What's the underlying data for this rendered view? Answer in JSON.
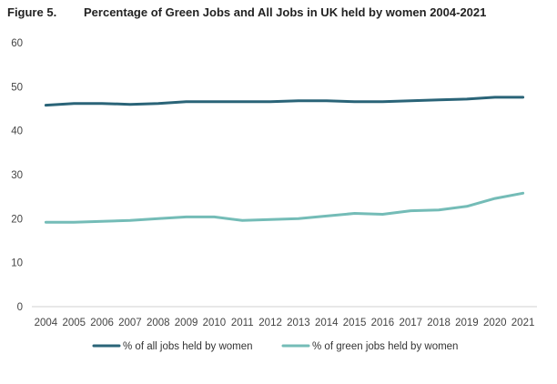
{
  "figure_label": "Figure 5.",
  "chart_data": {
    "type": "line",
    "title": "Percentage of Green Jobs and All Jobs in UK held by women 2004-2021",
    "xlabel": "",
    "ylabel": "",
    "ylim": [
      0,
      60
    ],
    "yticks": [
      0,
      10,
      20,
      30,
      40,
      50,
      60
    ],
    "grid": false,
    "legend": "bottom",
    "categories": [
      "2004",
      "2005",
      "2006",
      "2007",
      "2008",
      "2009",
      "2010",
      "2011",
      "2012",
      "2013",
      "2014",
      "2015",
      "2016",
      "2017",
      "2018",
      "2019",
      "2020",
      "2021"
    ],
    "series": [
      {
        "name": "% of all jobs held by women",
        "color": "#2a6478",
        "values": [
          45.8,
          46.2,
          46.2,
          46.0,
          46.2,
          46.6,
          46.6,
          46.6,
          46.6,
          46.8,
          46.8,
          46.6,
          46.6,
          46.8,
          47.0,
          47.2,
          47.6,
          47.6
        ]
      },
      {
        "name": "% of green jobs held by women",
        "color": "#74bcb7",
        "values": [
          19.2,
          19.2,
          19.4,
          19.6,
          20.0,
          20.4,
          20.4,
          19.6,
          19.8,
          20.0,
          20.6,
          21.2,
          21.0,
          21.8,
          22.0,
          22.8,
          24.6,
          25.8
        ]
      }
    ]
  }
}
